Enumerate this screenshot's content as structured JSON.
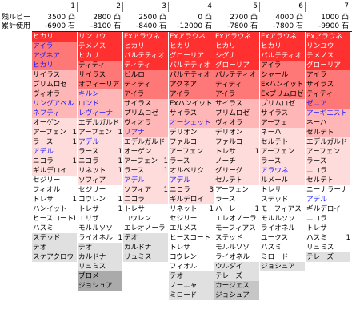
{
  "labels": {
    "remaining": "残ルビー",
    "cumulative": "累計使用"
  },
  "colors": {
    "red": "#ff3030",
    "salmon": "#ff7878",
    "pink": "#ffb6b6",
    "lightpink": "#ffdcdc",
    "white": "#ffffff",
    "lgray": "#e0e0e0",
    "mgray": "#c6c6c6",
    "dgray": "#aaaaaa",
    "text_black": "#000000",
    "text_blue": "#1a1aff",
    "text_white": "#ffffff"
  },
  "columns": [
    {
      "num": "1",
      "remaining": "3500 凸",
      "cumulative": "-6900 石",
      "cells": [
        [
          "ヒカリ",
          "red",
          "white",
          ""
        ],
        [
          "アイラ",
          "salmon",
          "blue",
          ""
        ],
        [
          "アグネア",
          "salmon",
          "blue",
          ""
        ],
        [
          "ヒカリ",
          "salmon",
          "blue",
          ""
        ],
        [
          "サイラス",
          "pink",
          "black",
          ""
        ],
        [
          "プリムロゼ",
          "pink",
          "black",
          ""
        ],
        [
          "ヴィオラ",
          "pink",
          "black",
          ""
        ],
        [
          "リングアベル",
          "pink",
          "blue",
          ""
        ],
        [
          "ネフティ",
          "pink",
          "blue",
          ""
        ],
        [
          "オーゲン",
          "lightpink",
          "black",
          ""
        ],
        [
          "アーフェン",
          "lightpink",
          "black",
          "1"
        ],
        [
          "ラース",
          "lightpink",
          "black",
          "1"
        ],
        [
          "アデル",
          "lightpink",
          "blue",
          ""
        ],
        [
          "ニコラ",
          "lightpink",
          "black",
          "1"
        ],
        [
          "ギルデロイ",
          "lightpink",
          "black",
          ""
        ],
        [
          "セジリー",
          "white",
          "black",
          ""
        ],
        [
          "フィオル",
          "white",
          "black",
          ""
        ],
        [
          "トレサ",
          "white",
          "black",
          "1"
        ],
        [
          "ハンイット",
          "white",
          "black",
          ""
        ],
        [
          "ヒースコート",
          "white",
          "black",
          "1"
        ],
        [
          "ハスミ",
          "white",
          "black",
          ""
        ],
        [
          "ステッド",
          "lgray",
          "black",
          ""
        ],
        [
          "テオ",
          "lgray",
          "black",
          ""
        ],
        [
          "スケアクロウ",
          "lgray",
          "black",
          ""
        ]
      ]
    },
    {
      "num": "2",
      "remaining": "2800 凸",
      "cumulative": "-8100 石",
      "cells": [
        [
          "リンユウ",
          "red",
          "white",
          ""
        ],
        [
          "テメノス",
          "red",
          "white",
          ""
        ],
        [
          "ヒカリ",
          "red",
          "white",
          ""
        ],
        [
          "ティティ",
          "salmon",
          "black",
          ""
        ],
        [
          "サイラス",
          "salmon",
          "black",
          ""
        ],
        [
          "オフィーリア",
          "salmon",
          "black",
          ""
        ],
        [
          "キルン",
          "pink",
          "blue",
          ""
        ],
        [
          "ロンド",
          "pink",
          "blue",
          ""
        ],
        [
          "レヴィーナ",
          "pink",
          "blue",
          ""
        ],
        [
          "エデルガルド",
          "lightpink",
          "black",
          ""
        ],
        [
          "アーフェン",
          "lightpink",
          "black",
          "1"
        ],
        [
          "アデル",
          "lightpink",
          "blue",
          ""
        ],
        [
          "ラース",
          "lightpink",
          "black",
          "1"
        ],
        [
          "ニコラ",
          "lightpink",
          "black",
          "1"
        ],
        [
          "リネット",
          "lightpink",
          "black",
          "1"
        ],
        [
          "ソフィア",
          "lightpink",
          "black",
          ""
        ],
        [
          "セジリー",
          "white",
          "black",
          ""
        ],
        [
          "コウレン",
          "white",
          "black",
          "1"
        ],
        [
          "トレサ",
          "white",
          "black",
          "1"
        ],
        [
          "エリザ",
          "white",
          "black",
          ""
        ],
        [
          "モルルソソ",
          "white",
          "black",
          ""
        ],
        [
          "ライオネル",
          "white",
          "black",
          "1"
        ],
        [
          "テオ",
          "lgray",
          "black",
          ""
        ],
        [
          "カルドナ",
          "lgray",
          "black",
          ""
        ],
        [
          "リュミス",
          "lgray",
          "black",
          ""
        ],
        [
          "ブロメ",
          "dgray",
          "black",
          ""
        ],
        [
          "ジョシュア",
          "dgray",
          "black",
          ""
        ]
      ]
    },
    {
      "num": "3",
      "remaining": "2500 凸",
      "cumulative": "-8400 石",
      "cells": [
        [
          "Exアラウネ",
          "red",
          "white",
          ""
        ],
        [
          "ヒカリ",
          "red",
          "white",
          ""
        ],
        [
          "パルテティオ",
          "red",
          "white",
          ""
        ],
        [
          "ティティ",
          "red",
          "white",
          ""
        ],
        [
          "ビルロ",
          "salmon",
          "black",
          ""
        ],
        [
          "ティティ",
          "salmon",
          "black",
          ""
        ],
        [
          "アイラ",
          "salmon",
          "black",
          ""
        ],
        [
          "サイラス",
          "pink",
          "black",
          ""
        ],
        [
          "プリムロゼ",
          "pink",
          "black",
          ""
        ],
        [
          "ヴィオラ",
          "pink",
          "black",
          ""
        ],
        [
          "リアナ",
          "pink",
          "blue",
          ""
        ],
        [
          "エデルガルド",
          "lightpink",
          "black",
          ""
        ],
        [
          "オーゲン",
          "lightpink",
          "black",
          ""
        ],
        [
          "アーフェン",
          "lightpink",
          "black",
          "1"
        ],
        [
          "ラース",
          "lightpink",
          "black",
          "1"
        ],
        [
          "アデル",
          "lightpink",
          "blue",
          ""
        ],
        [
          "ソフィア",
          "lightpink",
          "black",
          "1"
        ],
        [
          "ニコラ",
          "lightpink",
          "black",
          ""
        ],
        [
          "トレサ",
          "white",
          "black",
          ""
        ],
        [
          "コウレン",
          "white",
          "black",
          ""
        ],
        [
          "エレオノーラ",
          "white",
          "black",
          ""
        ],
        [
          "テオ",
          "lgray",
          "black",
          ""
        ],
        [
          "カルドナ",
          "lgray",
          "black",
          ""
        ],
        [
          "リュミス",
          "lgray",
          "black",
          ""
        ]
      ]
    },
    {
      "num": "4",
      "remaining": "0 凸",
      "cumulative": "-12000 石",
      "cells": [
        [
          "Exアラウネ",
          "red",
          "white",
          ""
        ],
        [
          "ヒカリ",
          "red",
          "white",
          ""
        ],
        [
          "グローリア",
          "red",
          "white",
          ""
        ],
        [
          "パルテティオ",
          "red",
          "white",
          ""
        ],
        [
          "パルテティオ",
          "salmon",
          "black",
          ""
        ],
        [
          "アグネア",
          "salmon",
          "black",
          ""
        ],
        [
          "アイラ",
          "salmon",
          "black",
          ""
        ],
        [
          "Exハンイット",
          "pink",
          "black",
          ""
        ],
        [
          "サイラス",
          "pink",
          "black",
          ""
        ],
        [
          "オーシェット",
          "pink",
          "blue",
          ""
        ],
        [
          "デリオン",
          "lightpink",
          "black",
          ""
        ],
        [
          "ファルコ",
          "lightpink",
          "black",
          ""
        ],
        [
          "アーフェン",
          "lightpink",
          "black",
          ""
        ],
        [
          "ラース",
          "lightpink",
          "black",
          ""
        ],
        [
          "オルベリク",
          "lightpink",
          "black",
          ""
        ],
        [
          "アデル",
          "lightpink",
          "blue",
          ""
        ],
        [
          "ニコラ",
          "lightpink",
          "black",
          "3"
        ],
        [
          "ギルデロイ",
          "lightpink",
          "black",
          ""
        ],
        [
          "リネット",
          "white",
          "black",
          "1"
        ],
        [
          "セジリー",
          "white",
          "black",
          ""
        ],
        [
          "エルメス",
          "white",
          "black",
          ""
        ],
        [
          "ヒースコート",
          "white",
          "black",
          ""
        ],
        [
          "トレサ",
          "white",
          "black",
          ""
        ],
        [
          "コウレン",
          "white",
          "black",
          ""
        ],
        [
          "フィオル",
          "white",
          "black",
          ""
        ],
        [
          "テオ",
          "lgray",
          "black",
          ""
        ],
        [
          "ノーニャ",
          "lgray",
          "black",
          ""
        ],
        [
          "ミロード",
          "lgray",
          "black",
          ""
        ]
      ]
    },
    {
      "num": "5",
      "remaining": "2700 凸",
      "cumulative": "-7800 石",
      "cells": [
        [
          "Exアラウネ",
          "red",
          "white",
          ""
        ],
        [
          "ヒカリ",
          "red",
          "white",
          ""
        ],
        [
          "シグナ",
          "red",
          "white",
          ""
        ],
        [
          "グローリア",
          "red",
          "white",
          ""
        ],
        [
          "パルテティオ",
          "salmon",
          "black",
          ""
        ],
        [
          "ティティ",
          "salmon",
          "black",
          ""
        ],
        [
          "アイラ",
          "salmon",
          "black",
          ""
        ],
        [
          "サイラス",
          "pink",
          "black",
          ""
        ],
        [
          "プリムロゼ",
          "pink",
          "black",
          ""
        ],
        [
          "ヴィオラ",
          "pink",
          "black",
          ""
        ],
        [
          "デリオン",
          "lightpink",
          "black",
          ""
        ],
        [
          "ファルコ",
          "lightpink",
          "black",
          ""
        ],
        [
          "トレサ",
          "lightpink",
          "black",
          "1"
        ],
        [
          "ノーチ",
          "lightpink",
          "black",
          ""
        ],
        [
          "グリーグ",
          "lightpink",
          "black",
          ""
        ],
        [
          "セルテト",
          "lightpink",
          "black",
          ""
        ],
        [
          "アーフェン",
          "white",
          "black",
          ""
        ],
        [
          "ラース",
          "white",
          "black",
          ""
        ],
        [
          "ハーレー",
          "white",
          "black",
          "1"
        ],
        [
          "エレオノーラ",
          "white",
          "black",
          ""
        ],
        [
          "モーフィアス",
          "white",
          "black",
          ""
        ],
        [
          "ステッド",
          "white",
          "black",
          ""
        ],
        [
          "モルルソソ",
          "white",
          "black",
          ""
        ],
        [
          "ライオネル",
          "white",
          "black",
          ""
        ],
        [
          "ウルダイ",
          "lgray",
          "black",
          ""
        ],
        [
          "テレーズ",
          "lgray",
          "black",
          ""
        ],
        [
          "カージェス",
          "mgray",
          "black",
          ""
        ],
        [
          "ジョシュア",
          "mgray",
          "black",
          ""
        ]
      ]
    },
    {
      "num": "6",
      "remaining": "4000 凸",
      "cumulative": "-7800 石",
      "cells": [
        [
          "Exアラウネ",
          "red",
          "white",
          ""
        ],
        [
          "ヒカリ",
          "red",
          "white",
          ""
        ],
        [
          "パルテティオ",
          "red",
          "white",
          ""
        ],
        [
          "アイラ",
          "salmon",
          "black",
          ""
        ],
        [
          "シャール",
          "salmon",
          "black",
          ""
        ],
        [
          "Exハンイット",
          "salmon",
          "black",
          ""
        ],
        [
          "Exプリムロゼ",
          "salmon",
          "black",
          ""
        ],
        [
          "プリムロゼ",
          "pink",
          "black",
          ""
        ],
        [
          "サイラス",
          "pink",
          "black",
          ""
        ],
        [
          "アーフェ",
          "pink",
          "black",
          ""
        ],
        [
          "ネーハ",
          "lightpink",
          "black",
          ""
        ],
        [
          "セルテト",
          "lightpink",
          "black",
          ""
        ],
        [
          "アーフェン",
          "lightpink",
          "black",
          ""
        ],
        [
          "ラース",
          "lightpink",
          "black",
          ""
        ],
        [
          "アラウネ",
          "lightpink",
          "blue",
          ""
        ],
        [
          "ルメール",
          "lightpink",
          "black",
          ""
        ],
        [
          "トレサ",
          "white",
          "black",
          ""
        ],
        [
          "ステッド",
          "white",
          "black",
          ""
        ],
        [
          "モーフィアス",
          "white",
          "black",
          ""
        ],
        [
          "モルルソソ",
          "white",
          "black",
          ""
        ],
        [
          "ライオネル",
          "white",
          "black",
          ""
        ],
        [
          "ユークス",
          "white",
          "black",
          ""
        ],
        [
          "ハスミ",
          "white",
          "black",
          ""
        ],
        [
          "ミロード",
          "white",
          "black",
          ""
        ],
        [
          "ジョシュア",
          "lgray",
          "black",
          ""
        ]
      ]
    },
    {
      "num": "7",
      "remaining": "1000 凸",
      "cumulative": "-9900 石",
      "cells": [
        [
          "Exアラウネ",
          "red",
          "white",
          ""
        ],
        [
          "リンユウ",
          "red",
          "white",
          ""
        ],
        [
          "テメノス",
          "red",
          "white",
          ""
        ],
        [
          "グローリア",
          "red",
          "white",
          ""
        ],
        [
          "アイラ",
          "salmon",
          "black",
          ""
        ],
        [
          "サイラス",
          "salmon",
          "black",
          ""
        ],
        [
          "ティティ",
          "salmon",
          "black",
          ""
        ],
        [
          "ゼニア",
          "salmon",
          "blue",
          ""
        ],
        [
          "アーギエスト",
          "pink",
          "blue",
          ""
        ],
        [
          "ネーハ",
          "pink",
          "black",
          ""
        ],
        [
          "セルテト",
          "pink",
          "black",
          ""
        ],
        [
          "エデルガルド",
          "lightpink",
          "black",
          ""
        ],
        [
          "アーフェン",
          "lightpink",
          "black",
          ""
        ],
        [
          "ラース",
          "lightpink",
          "black",
          ""
        ],
        [
          "ニコラ",
          "lightpink",
          "black",
          ""
        ],
        [
          "セルテト",
          "lightpink",
          "black",
          ""
        ],
        [
          "ニーナラーナ",
          "white",
          "black",
          ""
        ],
        [
          "アデル",
          "white",
          "blue",
          ""
        ],
        [
          "ギルデロイ",
          "white",
          "black",
          ""
        ],
        [
          "ニコラ",
          "white",
          "black",
          ""
        ],
        [
          "トレサ",
          "white",
          "black",
          ""
        ],
        [
          "ハスミ",
          "white",
          "black",
          "1"
        ],
        [
          "リュミス",
          "white",
          "black",
          ""
        ],
        [
          "テレーズ",
          "lgray",
          "black",
          ""
        ]
      ]
    }
  ]
}
